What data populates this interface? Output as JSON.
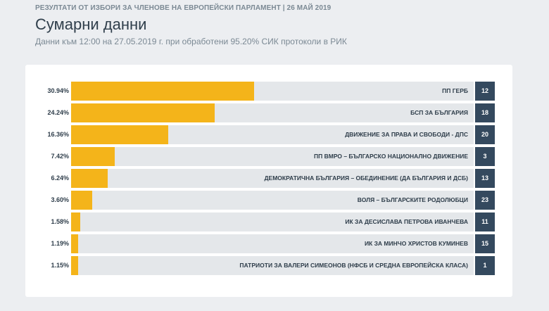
{
  "header": {
    "caption": "РЕЗУЛТАТИ ОТ ИЗБОРИ ЗА ЧЛЕНОВЕ НА ЕВРОПЕЙСКИ ПАРЛАМЕНТ | 26 МАЙ 2019",
    "title": "Сумарни данни",
    "subtitle": "Данни към 12:00 на 27.05.2019 г. при обработени 95.20% СИК протоколи в РИК"
  },
  "colors": {
    "bar": "#f4b41a",
    "track": "#e4e7ea",
    "badge": "#34495e"
  },
  "chart_data": {
    "type": "bar",
    "rows": [
      {
        "pct_label": "30.94%",
        "value": 30.94,
        "party": "ПП ГЕРБ",
        "badge": "12"
      },
      {
        "pct_label": "24.24%",
        "value": 24.24,
        "party": "БСП ЗА БЪЛГАРИЯ",
        "badge": "18"
      },
      {
        "pct_label": "16.36%",
        "value": 16.36,
        "party": "ДВИЖЕНИЕ ЗА ПРАВА И СВОБОДИ - ДПС",
        "badge": "20"
      },
      {
        "pct_label": "7.42%",
        "value": 7.42,
        "party": "ПП ВМРО – БЪЛГАРСКО НАЦИОНАЛНО ДВИЖЕНИЕ",
        "badge": "3"
      },
      {
        "pct_label": "6.24%",
        "value": 6.24,
        "party": "ДЕМОКРАТИЧНА БЪЛГАРИЯ – ОБЕДИНЕНИЕ (ДА БЪЛГАРИЯ И ДСБ)",
        "badge": "13"
      },
      {
        "pct_label": "3.60%",
        "value": 3.6,
        "party": "ВОЛЯ – БЪЛГАРСКИТЕ РОДОЛЮБЦИ",
        "badge": "23"
      },
      {
        "pct_label": "1.58%",
        "value": 1.58,
        "party": "ИК ЗА ДЕСИСЛАВА ПЕТРОВА ИВАНЧЕВА",
        "badge": "11"
      },
      {
        "pct_label": "1.19%",
        "value": 1.19,
        "party": "ИК ЗА МИНЧО ХРИСТОВ КУМИНЕВ",
        "badge": "15"
      },
      {
        "pct_label": "1.15%",
        "value": 1.15,
        "party": "ПАТРИОТИ ЗА ВАЛЕРИ СИМЕОНОВ (НФСБ И СРЕДНА ЕВРОПЕЙСКА КЛАСА)",
        "badge": "1"
      }
    ]
  }
}
